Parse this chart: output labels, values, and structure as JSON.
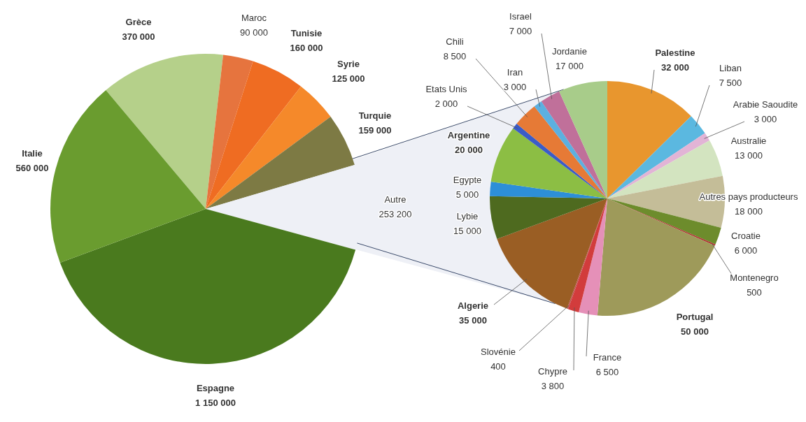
{
  "chart_data": [
    {
      "type": "pie",
      "categories": [
        "Grèce",
        "Maroc",
        "Tunisie",
        "Syrie",
        "Turquie",
        "Autre",
        "Espagne",
        "Italie"
      ],
      "values": [
        370000,
        90000,
        160000,
        125000,
        159000,
        253200,
        1150000,
        560000
      ],
      "colors": [
        "#b5d08a",
        "#e6743e",
        "#ef6c22",
        "#f5892a",
        "#7d7a44",
        "#eef0f6",
        "#4a7a1e",
        "#6a9c2f"
      ],
      "data_labels": true
    },
    {
      "type": "pie",
      "categories": [
        "Palestine",
        "Liban",
        "Arabie Saoudite",
        "Australie",
        "Autres pays producteurs",
        "Croatie",
        "Montenegro",
        "Portugal",
        "France",
        "Chypre",
        "Slovénie",
        "Algerie",
        "Lybie",
        "Egypte",
        "Argentine",
        "Etats Unis",
        "Chili",
        "Iran",
        "Israel",
        "Jordanie"
      ],
      "values": [
        32000,
        7500,
        3000,
        13000,
        18000,
        6000,
        500,
        50000,
        6500,
        3800,
        400,
        35000,
        15000,
        5000,
        20000,
        2000,
        8500,
        3000,
        7000,
        17000
      ],
      "colors": [
        "#e8962e",
        "#5bb8e0",
        "#e2b4d6",
        "#d3e4c0",
        "#c4bd98",
        "#6d8c2c",
        "#b03030",
        "#9e9a5a",
        "#e590b8",
        "#d23c3c",
        "#c05050",
        "#9a5e24",
        "#4e6a1f",
        "#2d8fd8",
        "#8cbe44",
        "#3a5cc8",
        "#e67a36",
        "#5cb0e0",
        "#c0709a",
        "#a8cc8a"
      ],
      "data_labels": true
    }
  ]
}
